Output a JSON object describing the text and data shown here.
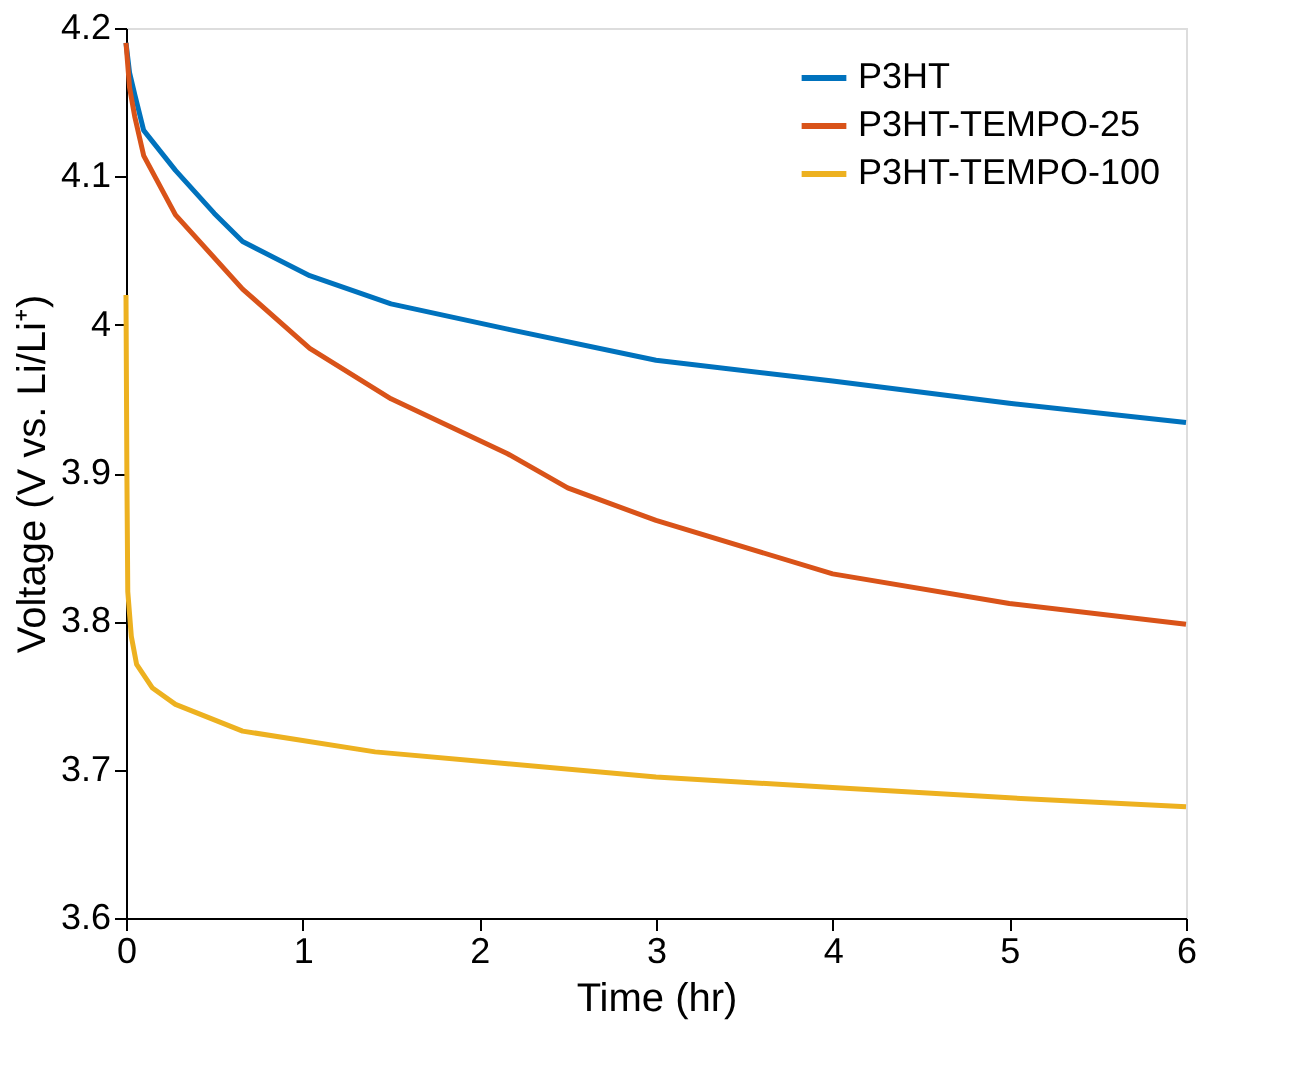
{
  "chart_data": {
    "type": "line",
    "xlabel": "Time (hr)",
    "ylabel": "Voltage (V vs. Li/Li⁺)",
    "xlim": [
      0,
      6
    ],
    "xticks": [
      0,
      1,
      2,
      3,
      4,
      5,
      6
    ],
    "ylim": [
      3.6,
      4.2
    ],
    "yticks": [
      3.6,
      3.7,
      3.8,
      3.9,
      4,
      4.1,
      4.2
    ],
    "grid": false,
    "legend": "top right",
    "marker": "none",
    "line_style": "solid",
    "series": [
      {
        "name": "P3HT",
        "color": "#0072bd",
        "x": [
          0,
          0.02,
          0.05,
          0.1,
          0.28,
          0.5,
          0.66,
          1.04,
          1.5,
          2.16,
          3,
          4,
          5,
          6
        ],
        "values": [
          4.19,
          4.17,
          4.155,
          4.131,
          4.104,
          4.075,
          4.056,
          4.033,
          4.014,
          3.997,
          3.976,
          3.962,
          3.947,
          3.934
        ]
      },
      {
        "name": "P3HT-TEMPO-25",
        "color": "#d95319",
        "x": [
          0,
          0.02,
          0.05,
          0.1,
          0.28,
          0.66,
          1.04,
          1.5,
          2.16,
          2.5,
          3,
          4,
          5,
          6
        ],
        "values": [
          4.19,
          4.16,
          4.14,
          4.114,
          4.074,
          4.024,
          3.984,
          3.95,
          3.913,
          3.89,
          3.868,
          3.832,
          3.812,
          3.798
        ]
      },
      {
        "name": "P3HT-TEMPO-100",
        "color": "#edb120",
        "x": [
          0,
          0.005,
          0.01,
          0.03,
          0.06,
          0.15,
          0.28,
          0.66,
          1.41,
          2.16,
          3,
          4,
          5,
          6
        ],
        "values": [
          4.02,
          3.9,
          3.82,
          3.79,
          3.771,
          3.755,
          3.744,
          3.726,
          3.712,
          3.704,
          3.695,
          3.688,
          3.681,
          3.675
        ]
      }
    ]
  }
}
